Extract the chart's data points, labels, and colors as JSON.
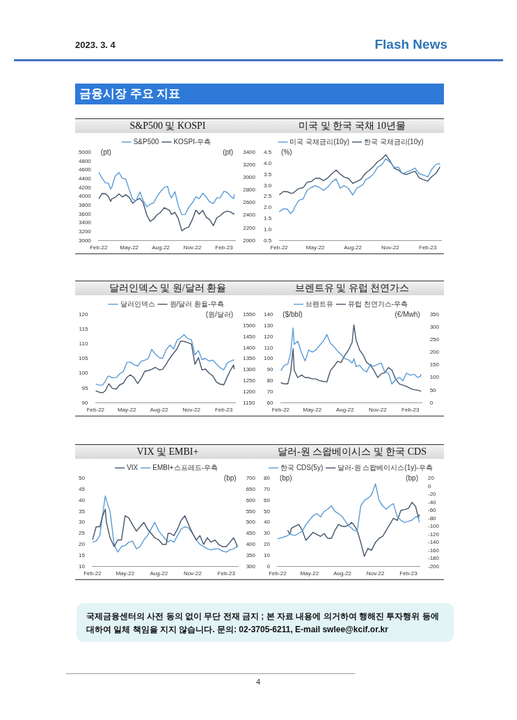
{
  "chart_data": [
    {
      "type": "line",
      "title": "S&P500 및 KOSPI",
      "ylabel": "(pt)",
      "y2label": "(pt)",
      "annotations": [
        "2023. 3. 4",
        "Flash News",
        "금융시장 주요 지표"
      ],
      "x": [
        "2022-02-01",
        "2022-02-11",
        "2022-02-21",
        "2022-03-01",
        "2022-03-08",
        "2022-03-11",
        "2022-03-21",
        "2022-04-01",
        "2022-04-11",
        "2022-04-21",
        "2022-05-01",
        "2022-05-11",
        "2022-05-21",
        "2022-06-01",
        "2022-06-11",
        "2022-06-21",
        "2022-07-01",
        "2022-07-11",
        "2022-07-21",
        "2022-08-01",
        "2022-08-11",
        "2022-08-21",
        "2022-08-26",
        "2022-09-01",
        "2022-09-11",
        "2022-09-21",
        "2022-10-01",
        "2022-10-11",
        "2022-10-21",
        "2022-11-01",
        "2022-11-11",
        "2022-11-21",
        "2022-12-01",
        "2022-12-11",
        "2022-12-21",
        "2023-01-01",
        "2023-01-11",
        "2023-01-21",
        "2023-02-01",
        "2023-02-11",
        "2023-02-21",
        "2023-03-01",
        "2023-03-03"
      ],
      "series": [
        {
          "name": "S&P500",
          "color": "#5b9bd5",
          "values": [
            4546,
            4418,
            4305,
            4306,
            4170,
            4204,
            4461,
            4545,
            4413,
            4394,
            4155,
            3935,
            3901,
            4101,
            3901,
            3765,
            3825,
            3855,
            3999,
            4119,
            4207,
            4228,
            4058,
            3966,
            4110,
            3790,
            3586,
            3589,
            3752,
            3856,
            3993,
            3950,
            4076,
            3990,
            3878,
            3840,
            3970,
            3972,
            4119,
            4090,
            3997,
            3951,
            4046
          ]
        },
        {
          "name": "KOSPI-우측",
          "color": "#44546a",
          "axis": "y2",
          "values": [
            2663,
            2747,
            2743,
            2703,
            2622,
            2661,
            2686,
            2740,
            2693,
            2728,
            2687,
            2592,
            2639,
            2670,
            2595,
            2408,
            2305,
            2340,
            2409,
            2452,
            2523,
            2492,
            2481,
            2415,
            2449,
            2347,
            2155,
            2192,
            2213,
            2335,
            2483,
            2419,
            2479,
            2371,
            2333,
            2236,
            2360,
            2395,
            2449,
            2469,
            2451,
            2421,
            2432
          ]
        }
      ],
      "xlim": [
        "2022-02-01",
        "2023-03-06"
      ],
      "xticks": [
        {
          "value": "2022-02-01",
          "label": "Feb-22"
        },
        {
          "value": "2022-05-01",
          "label": "May-22"
        },
        {
          "value": "2022-08-01",
          "label": "Aug-22"
        },
        {
          "value": "2022-11-01",
          "label": "Nov-22"
        },
        {
          "value": "2023-02-01",
          "label": "Feb-23"
        }
      ],
      "ylim": [
        3000,
        5000
      ],
      "yticks": [
        3000,
        3200,
        3400,
        3600,
        3800,
        4000,
        4200,
        4400,
        4600,
        4800,
        5000
      ],
      "y2lim": [
        2000,
        3400
      ],
      "y2ticks": [
        2000,
        2200,
        2400,
        2600,
        2800,
        3000,
        3200,
        3400
      ],
      "grid": false,
      "legend": "top",
      "marker": "none",
      "line_style": "solid"
    },
    {
      "type": "line",
      "title": "미국 및 한국 국채 10년물",
      "ylabel": "(%)",
      "x": [
        "2022-02-01",
        "2022-02-11",
        "2022-02-21",
        "2022-03-01",
        "2022-03-08",
        "2022-03-11",
        "2022-03-21",
        "2022-04-01",
        "2022-04-11",
        "2022-04-21",
        "2022-05-01",
        "2022-05-11",
        "2022-05-21",
        "2022-06-01",
        "2022-06-11",
        "2022-06-21",
        "2022-07-01",
        "2022-07-11",
        "2022-07-21",
        "2022-08-01",
        "2022-08-11",
        "2022-08-21",
        "2022-08-26",
        "2022-09-01",
        "2022-09-11",
        "2022-09-21",
        "2022-10-01",
        "2022-10-11",
        "2022-10-21",
        "2022-11-01",
        "2022-11-11",
        "2022-11-21",
        "2022-12-01",
        "2022-12-11",
        "2022-12-21",
        "2023-01-01",
        "2023-01-11",
        "2023-01-21",
        "2023-02-01",
        "2023-02-11",
        "2023-02-21",
        "2023-03-01",
        "2023-03-03"
      ],
      "series": [
        {
          "name": "미국 국채금리(10y)",
          "color": "#5b9bd5",
          "values": [
            1.8,
            1.94,
            1.93,
            1.72,
            1.86,
            2.0,
            2.32,
            2.39,
            2.79,
            2.91,
            2.99,
            2.91,
            2.78,
            2.94,
            3.16,
            3.3,
            2.88,
            2.99,
            2.87,
            2.57,
            2.88,
            2.98,
            3.04,
            3.26,
            3.36,
            3.53,
            3.83,
            3.94,
            4.21,
            4.05,
            3.82,
            3.83,
            3.53,
            3.61,
            3.68,
            3.79,
            3.54,
            3.48,
            3.39,
            3.74,
            3.95,
            4.0,
            3.96
          ]
        },
        {
          "name": "한국 국채금리(10y)",
          "color": "#44546a",
          "values": [
            2.57,
            2.72,
            2.72,
            2.65,
            2.66,
            2.71,
            2.86,
            2.9,
            3.15,
            3.18,
            3.33,
            3.33,
            3.22,
            3.35,
            3.54,
            3.7,
            3.52,
            3.38,
            3.33,
            3.1,
            3.18,
            3.28,
            3.4,
            3.55,
            3.7,
            3.87,
            4.08,
            4.2,
            4.4,
            4.1,
            3.78,
            3.7,
            3.55,
            3.5,
            3.58,
            3.65,
            3.35,
            3.27,
            3.2,
            3.4,
            3.55,
            3.78,
            3.85
          ]
        }
      ],
      "xlim": [
        "2022-02-01",
        "2023-03-06"
      ],
      "xticks": [
        {
          "value": "2022-02-01",
          "label": "Feb-22"
        },
        {
          "value": "2022-05-01",
          "label": "May-22"
        },
        {
          "value": "2022-08-01",
          "label": "Aug-22"
        },
        {
          "value": "2022-11-01",
          "label": "Nov-22"
        },
        {
          "value": "2023-02-01",
          "label": "Feb-23"
        }
      ],
      "ylim": [
        0.5,
        4.5
      ],
      "yticks": [
        {
          "value": 0.5,
          "label": "0.5"
        },
        {
          "value": 1,
          "label": "1.0"
        },
        {
          "value": 1.5,
          "label": "1.5"
        },
        {
          "value": 2,
          "label": "2.0"
        },
        {
          "value": 2.5,
          "label": "2.5"
        },
        {
          "value": 3,
          "label": "3.0"
        },
        {
          "value": 3.5,
          "label": "3.5"
        },
        {
          "value": 4,
          "label": "4.0"
        },
        {
          "value": 4.5,
          "label": "4.5"
        }
      ],
      "grid": false,
      "legend": "top",
      "marker": "none",
      "line_style": "solid"
    },
    {
      "type": "line",
      "title": "달러인덱스 및 원/달러 환율",
      "y2label": "(원/달러)",
      "x": [
        "2022-02-01",
        "2022-02-11",
        "2022-02-21",
        "2022-03-01",
        "2022-03-08",
        "2022-03-11",
        "2022-03-21",
        "2022-04-01",
        "2022-04-11",
        "2022-04-21",
        "2022-05-01",
        "2022-05-11",
        "2022-05-21",
        "2022-06-01",
        "2022-06-11",
        "2022-06-21",
        "2022-07-01",
        "2022-07-11",
        "2022-07-21",
        "2022-08-01",
        "2022-08-11",
        "2022-08-21",
        "2022-08-26",
        "2022-09-01",
        "2022-09-11",
        "2022-09-21",
        "2022-10-01",
        "2022-10-11",
        "2022-10-21",
        "2022-11-01",
        "2022-11-11",
        "2022-11-21",
        "2022-12-01",
        "2022-12-11",
        "2022-12-21",
        "2023-01-01",
        "2023-01-11",
        "2023-01-21",
        "2023-02-01",
        "2023-02-11",
        "2023-02-21",
        "2023-03-01",
        "2023-03-03"
      ],
      "series": [
        {
          "name": "달러인덱스",
          "color": "#5b9bd5",
          "values": [
            96.4,
            96.0,
            96.0,
            97.4,
            99.0,
            99.1,
            98.5,
            98.6,
            99.9,
            100.6,
            103.7,
            103.9,
            103.0,
            102.5,
            104.2,
            104.5,
            105.1,
            108.2,
            106.6,
            105.4,
            105.1,
            108.1,
            108.8,
            109.7,
            108.3,
            111.3,
            112.1,
            113.2,
            111.9,
            111.5,
            106.3,
            107.8,
            104.7,
            105.1,
            104.2,
            104.5,
            103.2,
            102.0,
            101.2,
            103.6,
            104.2,
            104.6,
            104.5
          ]
        },
        {
          "name": "원/달러 환율-우측",
          "color": "#44546a",
          "axis": "y2",
          "values": [
            1205,
            1198,
            1195,
            1205,
            1228,
            1236,
            1215,
            1212,
            1232,
            1239,
            1265,
            1277,
            1265,
            1237,
            1261,
            1293,
            1296,
            1302,
            1311,
            1300,
            1302,
            1325,
            1339,
            1353,
            1375,
            1395,
            1430,
            1429,
            1424,
            1417,
            1325,
            1355,
            1299,
            1303,
            1285,
            1272,
            1244,
            1235,
            1231,
            1268,
            1300,
            1322,
            1303
          ]
        }
      ],
      "xlim": [
        "2022-02-01",
        "2023-03-06"
      ],
      "xticks": [
        {
          "value": "2022-02-01",
          "label": "Feb-22"
        },
        {
          "value": "2022-05-01",
          "label": "May-22"
        },
        {
          "value": "2022-08-01",
          "label": "Aug-22"
        },
        {
          "value": "2022-11-01",
          "label": "Nov-22"
        },
        {
          "value": "2023-02-01",
          "label": "Feb-23"
        }
      ],
      "ylim": [
        90,
        120
      ],
      "yticks": [
        90,
        95,
        100,
        105,
        110,
        115,
        120
      ],
      "y2lim": [
        1150,
        1550
      ],
      "y2ticks": [
        1150,
        1200,
        1250,
        1300,
        1350,
        1400,
        1450,
        1500,
        1550
      ],
      "grid": false,
      "legend": "top",
      "marker": "none",
      "line_style": "solid"
    },
    {
      "type": "line",
      "title": "브렌트유 및 유럽 천연가스",
      "ylabel": "($/bbl)",
      "y2label": "(€/Mwh)",
      "x": [
        "2022-02-01",
        "2022-02-11",
        "2022-02-21",
        "2022-03-01",
        "2022-03-08",
        "2022-03-11",
        "2022-03-21",
        "2022-04-01",
        "2022-04-11",
        "2022-04-21",
        "2022-05-01",
        "2022-05-11",
        "2022-05-21",
        "2022-06-01",
        "2022-06-11",
        "2022-06-21",
        "2022-07-01",
        "2022-07-11",
        "2022-07-21",
        "2022-08-01",
        "2022-08-11",
        "2022-08-21",
        "2022-08-26",
        "2022-09-01",
        "2022-09-11",
        "2022-09-21",
        "2022-10-01",
        "2022-10-11",
        "2022-10-21",
        "2022-11-01",
        "2022-11-11",
        "2022-11-21",
        "2022-12-01",
        "2022-12-11",
        "2022-12-21",
        "2023-01-01",
        "2023-01-11",
        "2023-01-21",
        "2023-02-01",
        "2023-02-11",
        "2023-02-21",
        "2023-03-01",
        "2023-03-03"
      ],
      "series": [
        {
          "name": "브렌트유",
          "color": "#5b9bd5",
          "values": [
            89,
            94,
            95,
            105,
            128,
            113,
            116,
            105,
            98,
            108,
            106,
            108,
            112,
            116,
            122,
            114,
            111,
            107,
            104,
            100,
            99,
            96,
            100,
            93,
            94,
            90,
            88,
            95,
            93,
            95,
            96,
            88,
            87,
            77,
            81,
            83,
            80,
            87,
            85,
            86,
            83,
            84,
            86
          ]
        },
        {
          "name": "유럽 천연가스-우측",
          "color": "#44546a",
          "axis": "y2",
          "values": [
            80,
            75,
            75,
            120,
            215,
            130,
            100,
            110,
            100,
            100,
            95,
            95,
            88,
            85,
            83,
            128,
            145,
            165,
            160,
            190,
            210,
            240,
            310,
            250,
            210,
            190,
            160,
            150,
            130,
            100,
            115,
            120,
            140,
            130,
            95,
            75,
            70,
            65,
            57,
            52,
            50,
            47,
            45
          ]
        }
      ],
      "xlim": [
        "2022-02-01",
        "2023-03-06"
      ],
      "xticks": [
        {
          "value": "2022-02-01",
          "label": "Feb-22"
        },
        {
          "value": "2022-05-01",
          "label": "May-22"
        },
        {
          "value": "2022-08-01",
          "label": "Aug-22"
        },
        {
          "value": "2022-11-01",
          "label": "Nov-22"
        },
        {
          "value": "2023-02-01",
          "label": "Feb-23"
        }
      ],
      "ylim": [
        60,
        140
      ],
      "yticks": [
        60,
        70,
        80,
        90,
        100,
        110,
        120,
        130,
        140
      ],
      "y2lim": [
        0,
        350
      ],
      "y2ticks": [
        0,
        50,
        100,
        150,
        200,
        250,
        300,
        350
      ],
      "grid": false,
      "legend": "top",
      "marker": "none",
      "line_style": "solid"
    },
    {
      "type": "line",
      "title": "VIX 및 EMBI+",
      "y2label": "(bp)",
      "x": [
        "2022-02-01",
        "2022-02-11",
        "2022-02-21",
        "2022-03-01",
        "2022-03-08",
        "2022-03-11",
        "2022-03-21",
        "2022-04-01",
        "2022-04-11",
        "2022-04-21",
        "2022-05-01",
        "2022-05-11",
        "2022-05-21",
        "2022-06-01",
        "2022-06-11",
        "2022-06-21",
        "2022-07-01",
        "2022-07-11",
        "2022-07-21",
        "2022-08-01",
        "2022-08-11",
        "2022-08-21",
        "2022-08-26",
        "2022-09-01",
        "2022-09-11",
        "2022-09-21",
        "2022-10-01",
        "2022-10-11",
        "2022-10-21",
        "2022-11-01",
        "2022-11-11",
        "2022-11-21",
        "2022-12-01",
        "2022-12-11",
        "2022-12-21",
        "2023-01-01",
        "2023-01-11",
        "2023-01-21",
        "2023-02-01",
        "2023-02-11",
        "2023-02-21",
        "2023-03-01",
        "2023-03-03"
      ],
      "series": [
        {
          "name": "VIX",
          "color": "#44546a",
          "values": [
            22,
            28,
            28,
            33,
            36,
            30,
            23,
            19,
            22,
            22,
            33,
            32,
            29,
            26,
            28,
            30,
            27,
            25,
            23,
            22,
            20,
            20,
            25,
            25,
            24,
            27,
            31,
            33,
            29,
            25,
            22,
            24,
            20,
            23,
            21,
            22,
            20,
            19,
            19,
            21,
            23,
            20,
            19
          ]
        },
        {
          "name": "EMBI+스프레드-우측",
          "color": "#5b9bd5",
          "axis": "y2",
          "values": [
            410,
            415,
            440,
            540,
            620,
            600,
            550,
            400,
            365,
            390,
            395,
            410,
            415,
            380,
            390,
            420,
            440,
            470,
            500,
            460,
            440,
            420,
            410,
            420,
            410,
            440,
            470,
            480,
            475,
            450,
            420,
            400,
            390,
            380,
            375,
            380,
            380,
            370,
            365,
            375,
            380,
            390,
            385
          ]
        }
      ],
      "xlim": [
        "2022-02-01",
        "2023-03-06"
      ],
      "xticks": [
        {
          "value": "2022-02-01",
          "label": "Feb-22"
        },
        {
          "value": "2022-05-01",
          "label": "May-22"
        },
        {
          "value": "2022-08-01",
          "label": "Aug-22"
        },
        {
          "value": "2022-11-01",
          "label": "Nov-22"
        },
        {
          "value": "2023-02-01",
          "label": "Feb-23"
        }
      ],
      "ylim": [
        10,
        50
      ],
      "yticks": [
        10,
        15,
        20,
        25,
        30,
        35,
        40,
        45,
        50
      ],
      "y2lim": [
        300,
        700
      ],
      "y2ticks": [
        300,
        350,
        400,
        450,
        500,
        550,
        600,
        650,
        700
      ],
      "grid": false,
      "legend": "top",
      "marker": "none",
      "line_style": "solid"
    },
    {
      "type": "line",
      "title": "달러-원 스왑베이시스 및 한국 CDS",
      "ylabel": "(bp)",
      "y2label": "(bp)",
      "annotations": [
        "국제금융센터의 사전 동의 없이 무단 전재 금지 ; 본 자료 내용에 의거하여 행해진 투자행위 등에 대하여 일체 책임을 지지 않습니다. 문의: 02-3705-6211, E-mail swlee@kcif.or.kr",
        "4"
      ],
      "x": [
        "2022-02-01",
        "2022-02-11",
        "2022-02-21",
        "2022-03-01",
        "2022-03-08",
        "2022-03-11",
        "2022-03-21",
        "2022-04-01",
        "2022-04-11",
        "2022-04-21",
        "2022-05-01",
        "2022-05-11",
        "2022-05-21",
        "2022-06-01",
        "2022-06-11",
        "2022-06-21",
        "2022-07-01",
        "2022-07-11",
        "2022-07-21",
        "2022-08-01",
        "2022-08-11",
        "2022-08-21",
        "2022-08-26",
        "2022-09-01",
        "2022-09-11",
        "2022-09-21",
        "2022-10-01",
        "2022-10-11",
        "2022-10-21",
        "2022-11-01",
        "2022-11-11",
        "2022-11-21",
        "2022-12-01",
        "2022-12-11",
        "2022-12-21",
        "2023-01-01",
        "2023-01-11",
        "2023-01-21",
        "2023-02-01",
        "2023-02-11",
        "2023-02-21",
        "2023-03-01",
        "2023-03-03"
      ],
      "series": [
        {
          "name": "한국 CDS(5y)",
          "color": "#5b9bd5",
          "values": [
            25,
            26,
            27,
            28,
            30,
            29,
            28,
            30,
            32,
            38,
            42,
            46,
            48,
            45,
            50,
            52,
            55,
            50,
            48,
            45,
            40,
            36,
            35,
            33,
            32,
            55,
            60,
            62,
            65,
            75,
            60,
            55,
            52,
            55,
            57,
            45,
            42,
            40,
            41,
            42,
            45,
            45,
            40
          ]
        },
        {
          "name": "달러-원 스왑베이시스(1y)-우측",
          "color": "#44546a",
          "axis": "y2",
          "values": [
            null,
            null,
            null,
            -110,
            -120,
            -105,
            -100,
            -95,
            -110,
            -135,
            -125,
            -115,
            -120,
            -125,
            -118,
            -130,
            -130,
            -110,
            -95,
            -100,
            -100,
            -95,
            -90,
            -95,
            -110,
            -140,
            -175,
            -155,
            -160,
            -140,
            -130,
            -125,
            -110,
            -95,
            -80,
            -85,
            -60,
            -58,
            -55,
            -40,
            -50,
            -80,
            -70
          ]
        }
      ],
      "xlim": [
        "2022-02-01",
        "2023-03-06"
      ],
      "xticks": [
        {
          "value": "2022-02-01",
          "label": "Feb-22"
        },
        {
          "value": "2022-05-01",
          "label": "May-22"
        },
        {
          "value": "2022-08-01",
          "label": "Aug-22"
        },
        {
          "value": "2022-11-01",
          "label": "Nov-22"
        },
        {
          "value": "2023-02-01",
          "label": "Feb-23"
        }
      ],
      "ylim": [
        0,
        80
      ],
      "yticks": [
        0,
        10,
        20,
        30,
        40,
        50,
        60,
        70,
        80
      ],
      "y2lim": [
        -200,
        20
      ],
      "y2ticks": [
        -200,
        -180,
        -160,
        -140,
        -120,
        -100,
        -80,
        -60,
        -40,
        -20,
        0,
        20
      ],
      "grid": false,
      "legend": "top",
      "marker": "none",
      "line_style": "solid"
    }
  ]
}
